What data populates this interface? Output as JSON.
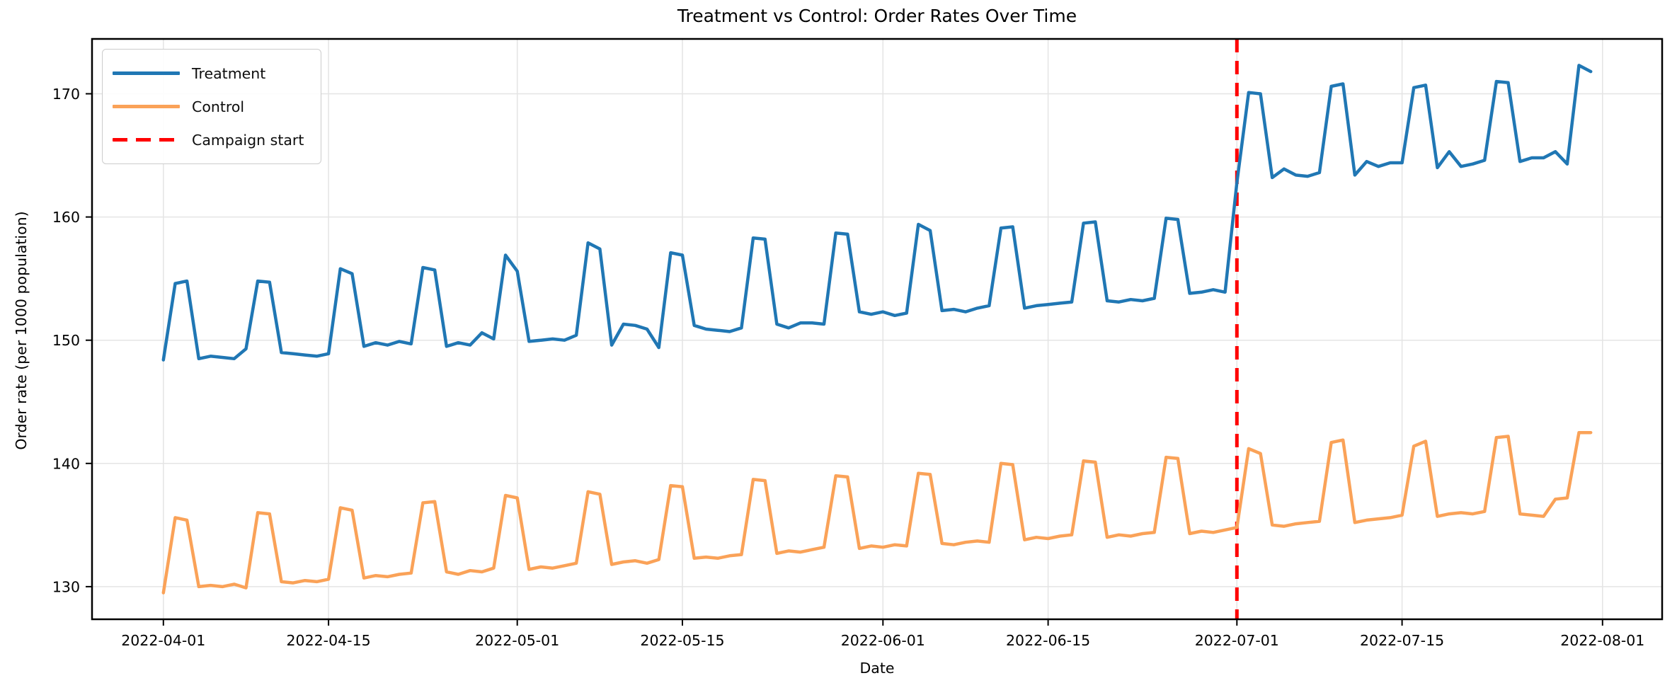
{
  "figure": {
    "title": "Treatment vs Control: Order Rates Over Time",
    "xlabel": "Date",
    "ylabel": "Order rate (per 1000 population)"
  },
  "legend": {
    "position": "upper-left",
    "items": [
      {
        "label": "Treatment",
        "color": "#2077b4",
        "dash": "solid"
      },
      {
        "label": "Control",
        "color": "#faa258",
        "dash": "solid"
      },
      {
        "label": "Campaign start",
        "color": "#ff0000",
        "dash": "dashed"
      }
    ]
  },
  "axes": {
    "grid": true,
    "grid_color": "#e4e4e4",
    "spine_color": "#000000",
    "y_ticks": [
      130,
      140,
      150,
      160,
      170
    ],
    "x_ticks": [
      {
        "label": "2022-04-01",
        "day": 0
      },
      {
        "label": "2022-04-15",
        "day": 14
      },
      {
        "label": "2022-05-01",
        "day": 30
      },
      {
        "label": "2022-05-15",
        "day": 44
      },
      {
        "label": "2022-06-01",
        "day": 61
      },
      {
        "label": "2022-06-15",
        "day": 75
      },
      {
        "label": "2022-07-01",
        "day": 91
      },
      {
        "label": "2022-07-15",
        "day": 105
      },
      {
        "label": "2022-08-01",
        "day": 122
      }
    ]
  },
  "chart_data": {
    "type": "line",
    "title": "Treatment vs Control: Order Rates Over Time",
    "xlabel": "Date",
    "ylabel": "Order rate (per 1000 population)",
    "xlim_days": [
      -6.05,
      127.05
    ],
    "ylim": [
      127.35,
      174.45
    ],
    "x_start": "2022-04-01",
    "x": [
      "2022-04-01",
      "2022-04-02",
      "2022-04-03",
      "2022-04-04",
      "2022-04-05",
      "2022-04-06",
      "2022-04-07",
      "2022-04-08",
      "2022-04-09",
      "2022-04-10",
      "2022-04-11",
      "2022-04-12",
      "2022-04-13",
      "2022-04-14",
      "2022-04-15",
      "2022-04-16",
      "2022-04-17",
      "2022-04-18",
      "2022-04-19",
      "2022-04-20",
      "2022-04-21",
      "2022-04-22",
      "2022-04-23",
      "2022-04-24",
      "2022-04-25",
      "2022-04-26",
      "2022-04-27",
      "2022-04-28",
      "2022-04-29",
      "2022-04-30",
      "2022-05-01",
      "2022-05-02",
      "2022-05-03",
      "2022-05-04",
      "2022-05-05",
      "2022-05-06",
      "2022-05-07",
      "2022-05-08",
      "2022-05-09",
      "2022-05-10",
      "2022-05-11",
      "2022-05-12",
      "2022-05-13",
      "2022-05-14",
      "2022-05-15",
      "2022-05-16",
      "2022-05-17",
      "2022-05-18",
      "2022-05-19",
      "2022-05-20",
      "2022-05-21",
      "2022-05-22",
      "2022-05-23",
      "2022-05-24",
      "2022-05-25",
      "2022-05-26",
      "2022-05-27",
      "2022-05-28",
      "2022-05-29",
      "2022-05-30",
      "2022-05-31",
      "2022-06-01",
      "2022-06-02",
      "2022-06-03",
      "2022-06-04",
      "2022-06-05",
      "2022-06-06",
      "2022-06-07",
      "2022-06-08",
      "2022-06-09",
      "2022-06-10",
      "2022-06-11",
      "2022-06-12",
      "2022-06-13",
      "2022-06-14",
      "2022-06-15",
      "2022-06-16",
      "2022-06-17",
      "2022-06-18",
      "2022-06-19",
      "2022-06-20",
      "2022-06-21",
      "2022-06-22",
      "2022-06-23",
      "2022-06-24",
      "2022-06-25",
      "2022-06-26",
      "2022-06-27",
      "2022-06-28",
      "2022-06-29",
      "2022-06-30",
      "2022-07-01",
      "2022-07-02",
      "2022-07-03",
      "2022-07-04",
      "2022-07-05",
      "2022-07-06",
      "2022-07-07",
      "2022-07-08",
      "2022-07-09",
      "2022-07-10",
      "2022-07-11",
      "2022-07-12",
      "2022-07-13",
      "2022-07-14",
      "2022-07-15",
      "2022-07-16",
      "2022-07-17",
      "2022-07-18",
      "2022-07-19",
      "2022-07-20",
      "2022-07-21",
      "2022-07-22",
      "2022-07-23",
      "2022-07-24",
      "2022-07-25",
      "2022-07-26",
      "2022-07-27",
      "2022-07-28",
      "2022-07-29",
      "2022-07-30",
      "2022-07-31"
    ],
    "series": [
      {
        "name": "Treatment",
        "color": "#2077b4",
        "values": [
          148.4,
          154.6,
          154.8,
          148.5,
          148.7,
          148.6,
          148.5,
          149.3,
          154.8,
          154.7,
          149.0,
          148.9,
          148.8,
          148.7,
          148.9,
          155.8,
          155.4,
          149.5,
          149.8,
          149.6,
          149.9,
          149.7,
          155.9,
          155.7,
          149.5,
          149.8,
          149.6,
          150.6,
          150.1,
          156.9,
          155.6,
          149.9,
          150.0,
          150.1,
          150.0,
          150.4,
          157.9,
          157.4,
          149.6,
          151.3,
          151.2,
          150.9,
          149.4,
          157.1,
          156.9,
          151.2,
          150.9,
          150.8,
          150.7,
          151.0,
          158.3,
          158.2,
          151.3,
          151.0,
          151.4,
          151.4,
          151.3,
          158.7,
          158.6,
          152.3,
          152.1,
          152.3,
          152.0,
          152.2,
          159.4,
          158.9,
          152.4,
          152.5,
          152.3,
          152.6,
          152.8,
          159.1,
          159.2,
          152.6,
          152.8,
          152.9,
          153.0,
          153.1,
          159.5,
          159.6,
          153.2,
          153.1,
          153.3,
          153.2,
          153.4,
          159.9,
          159.8,
          153.8,
          153.9,
          154.1,
          153.9,
          162.8,
          170.1,
          170.0,
          163.2,
          163.9,
          163.4,
          163.3,
          163.6,
          170.6,
          170.8,
          163.4,
          164.5,
          164.1,
          164.4,
          164.4,
          170.5,
          170.7,
          164.0,
          165.3,
          164.1,
          164.3,
          164.6,
          171.0,
          170.9,
          164.5,
          164.8,
          164.8,
          165.3,
          164.3,
          172.3,
          171.8
        ]
      },
      {
        "name": "Control",
        "color": "#faa258",
        "values": [
          129.5,
          135.6,
          135.4,
          130.0,
          130.1,
          130.0,
          130.2,
          129.9,
          136.0,
          135.9,
          130.4,
          130.3,
          130.5,
          130.4,
          130.6,
          136.4,
          136.2,
          130.7,
          130.9,
          130.8,
          131.0,
          131.1,
          136.8,
          136.9,
          131.2,
          131.0,
          131.3,
          131.2,
          131.5,
          137.4,
          137.2,
          131.4,
          131.6,
          131.5,
          131.7,
          131.9,
          137.7,
          137.5,
          131.8,
          132.0,
          132.1,
          131.9,
          132.2,
          138.2,
          138.1,
          132.3,
          132.4,
          132.3,
          132.5,
          132.6,
          138.7,
          138.6,
          132.7,
          132.9,
          132.8,
          133.0,
          133.2,
          139.0,
          138.9,
          133.1,
          133.3,
          133.2,
          133.4,
          133.3,
          139.2,
          139.1,
          133.5,
          133.4,
          133.6,
          133.7,
          133.6,
          140.0,
          139.9,
          133.8,
          134.0,
          133.9,
          134.1,
          134.2,
          140.2,
          140.1,
          134.0,
          134.2,
          134.1,
          134.3,
          134.4,
          140.5,
          140.4,
          134.3,
          134.5,
          134.4,
          134.6,
          134.8,
          141.2,
          140.8,
          135.0,
          134.9,
          135.1,
          135.2,
          135.3,
          141.7,
          141.9,
          135.2,
          135.4,
          135.5,
          135.6,
          135.8,
          141.4,
          141.8,
          135.7,
          135.9,
          136.0,
          135.9,
          136.1,
          142.1,
          142.2,
          135.9,
          135.8,
          135.7,
          137.1,
          137.2,
          142.5,
          142.5
        ]
      }
    ],
    "annotations": [
      {
        "type": "vline",
        "label": "Campaign start",
        "x": "2022-07-01",
        "color": "#ff0000",
        "style": "dashed"
      }
    ]
  }
}
